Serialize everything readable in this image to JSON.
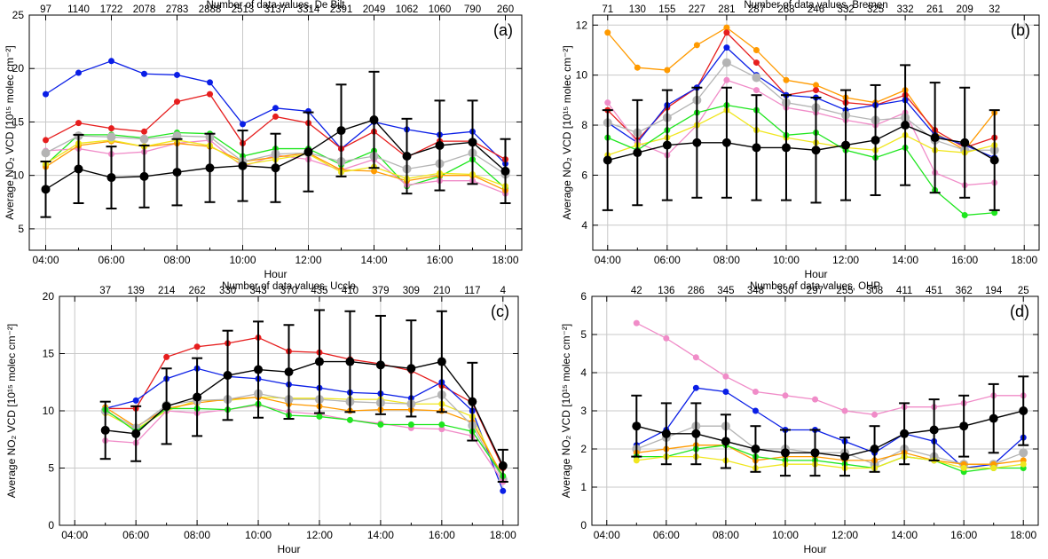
{
  "chart_data": [
    {
      "type": "line",
      "panel_label": "(a)",
      "top_title": "Number of data values, De Bilt",
      "top_counts": [
        "97",
        "1140",
        "1722",
        "2078",
        "2783",
        "2888",
        "2513",
        "3137",
        "3314",
        "2391",
        "2049",
        "1062",
        "1060",
        "790",
        "260"
      ],
      "xlabel": "Hour",
      "ylabel": "Average NO₂ VCD [10¹⁵ molec cm⁻²]",
      "xlim": [
        3.5,
        18.5
      ],
      "ylim": [
        3,
        25
      ],
      "x_ticks": [
        4,
        6,
        8,
        10,
        12,
        14,
        16,
        18
      ],
      "x_tick_labels": [
        "04:00",
        "06:00",
        "08:00",
        "10:00",
        "12:00",
        "14:00",
        "16:00",
        "18:00"
      ],
      "y_ticks": [
        5,
        10,
        15,
        20,
        25
      ],
      "x": [
        4,
        5,
        6,
        7,
        8,
        9,
        10,
        11,
        12,
        13,
        14,
        15,
        16,
        17,
        18
      ],
      "series": [
        {
          "color": "#0a1ee6",
          "values": [
            17.6,
            19.6,
            20.7,
            19.5,
            19.4,
            18.7,
            14.8,
            16.3,
            16.0,
            12.5,
            15.0,
            14.3,
            13.8,
            14.1,
            11.1
          ]
        },
        {
          "color": "#e61e1e",
          "values": [
            13.3,
            14.9,
            14.4,
            14.1,
            16.9,
            17.6,
            13.0,
            15.5,
            14.9,
            12.5,
            14.1,
            11.7,
            13.2,
            13.2,
            11.5
          ]
        },
        {
          "color": "#1ee61e",
          "values": [
            11.0,
            13.8,
            13.8,
            13.5,
            14.0,
            13.9,
            11.8,
            12.5,
            12.5,
            11.0,
            12.3,
            9.0,
            9.9,
            11.5,
            8.8
          ]
        },
        {
          "color": "#f08cc8",
          "values": [
            12.3,
            12.5,
            12.0,
            12.2,
            13.0,
            13.3,
            10.8,
            11.9,
            11.5,
            10.5,
            11.5,
            9.1,
            9.5,
            9.5,
            8.3
          ]
        },
        {
          "color": "#ff9a00",
          "values": [
            10.8,
            12.8,
            13.2,
            12.7,
            13.0,
            12.7,
            11.3,
            11.7,
            12.1,
            10.5,
            10.4,
            9.5,
            10.0,
            10.0,
            8.6
          ]
        },
        {
          "color": "#f0e61e",
          "values": [
            11.1,
            13.0,
            13.3,
            12.7,
            13.3,
            12.8,
            11.0,
            11.5,
            12.0,
            10.3,
            10.8,
            9.7,
            10.2,
            10.1,
            9.0
          ]
        },
        {
          "color": "#b4b4b4",
          "values": [
            12.1,
            13.7,
            13.6,
            13.4,
            13.7,
            13.6,
            11.3,
            12.0,
            12.1,
            11.3,
            11.8,
            10.6,
            11.1,
            12.1,
            10.1
          ]
        },
        {
          "color": "#000000",
          "values": [
            8.7,
            10.6,
            9.8,
            9.9,
            10.3,
            10.7,
            10.9,
            10.7,
            12.2,
            14.2,
            15.2,
            11.8,
            12.8,
            13.1,
            10.4
          ],
          "error": [
            2.6,
            3.2,
            2.9,
            2.9,
            3.1,
            3.2,
            3.3,
            3.2,
            3.7,
            4.3,
            4.5,
            3.5,
            4.2,
            3.9,
            3.0
          ]
        }
      ]
    },
    {
      "type": "line",
      "panel_label": "(b)",
      "top_title": "Number of data values, Bremen",
      "top_counts": [
        "71",
        "130",
        "155",
        "227",
        "281",
        "287",
        "268",
        "246",
        "332",
        "325",
        "332",
        "261",
        "209",
        "32"
      ],
      "xlabel": "Hour",
      "ylabel": "Average NO₂ VCD [10¹⁵ molec cm⁻²]",
      "xlim": [
        3.5,
        18.5
      ],
      "ylim": [
        3,
        12.4
      ],
      "x_ticks": [
        4,
        6,
        8,
        10,
        12,
        14,
        16,
        18
      ],
      "x_tick_labels": [
        "04:00",
        "06:00",
        "08:00",
        "10:00",
        "12:00",
        "14:00",
        "16:00",
        "18:00"
      ],
      "y_ticks": [
        4,
        6,
        8,
        10,
        12
      ],
      "x": [
        4,
        5,
        6,
        7,
        8,
        9,
        10,
        11,
        12,
        13,
        14,
        15,
        16,
        17
      ],
      "series": [
        {
          "color": "#ff9a00",
          "values": [
            11.7,
            10.3,
            10.2,
            11.2,
            11.9,
            11.0,
            9.8,
            9.6,
            9.1,
            8.9,
            9.4,
            7.7,
            7.0,
            8.5
          ]
        },
        {
          "color": "#e61e1e",
          "values": [
            8.6,
            7.4,
            8.7,
            9.5,
            11.7,
            10.5,
            9.2,
            9.4,
            8.9,
            8.8,
            9.2,
            7.8,
            7.1,
            7.5
          ]
        },
        {
          "color": "#0a1ee6",
          "values": [
            8.1,
            7.3,
            8.8,
            9.5,
            11.1,
            10.0,
            9.2,
            9.1,
            8.6,
            8.8,
            9.0,
            7.6,
            7.2,
            6.7
          ]
        },
        {
          "color": "#f08cc8",
          "values": [
            8.9,
            7.3,
            6.8,
            8.0,
            9.8,
            9.4,
            8.7,
            8.5,
            8.2,
            8.0,
            8.5,
            6.1,
            5.6,
            5.7
          ]
        },
        {
          "color": "#b4b4b4",
          "values": [
            8.1,
            7.7,
            8.3,
            9.0,
            10.5,
            9.9,
            8.9,
            8.7,
            8.4,
            8.2,
            8.3,
            7.4,
            7.0,
            7.0
          ]
        },
        {
          "color": "#f0e61e",
          "values": [
            6.8,
            7.2,
            7.5,
            8.0,
            8.6,
            7.8,
            7.5,
            7.3,
            7.1,
            7.0,
            7.6,
            7.0,
            6.9,
            7.2
          ]
        },
        {
          "color": "#1ee61e",
          "values": [
            7.5,
            7.0,
            7.8,
            8.5,
            8.8,
            8.6,
            7.6,
            7.7,
            7.0,
            6.7,
            7.1,
            5.4,
            4.4,
            4.5
          ]
        },
        {
          "color": "#000000",
          "values": [
            6.6,
            6.9,
            7.2,
            7.3,
            7.3,
            7.1,
            7.1,
            7.0,
            7.2,
            7.4,
            8.0,
            7.5,
            7.3,
            6.6
          ],
          "error": [
            2.0,
            2.1,
            2.2,
            2.2,
            2.2,
            2.1,
            2.1,
            2.1,
            2.2,
            2.2,
            2.4,
            2.2,
            2.2,
            2.0
          ]
        }
      ]
    },
    {
      "type": "line",
      "panel_label": "(c)",
      "top_title": "Number of data values, Uccle",
      "top_counts": [
        "37",
        "139",
        "214",
        "262",
        "330",
        "343",
        "370",
        "435",
        "410",
        "379",
        "309",
        "210",
        "117",
        "4"
      ],
      "xlabel": "Hour",
      "ylabel": "Average NO₂ VCD [10¹⁵ molec cm⁻²]",
      "xlim": [
        3.5,
        18.5
      ],
      "ylim": [
        0,
        20
      ],
      "x_ticks": [
        4,
        6,
        8,
        10,
        12,
        14,
        16,
        18
      ],
      "x_tick_labels": [
        "04:00",
        "06:00",
        "08:00",
        "10:00",
        "12:00",
        "14:00",
        "16:00",
        "18:00"
      ],
      "y_ticks": [
        0,
        5,
        10,
        15,
        20
      ],
      "x": [
        5,
        6,
        7,
        8,
        9,
        10,
        11,
        12,
        13,
        14,
        15,
        16,
        17,
        18
      ],
      "series": [
        {
          "color": "#e61e1e",
          "values": [
            10.2,
            10.2,
            14.7,
            15.6,
            15.9,
            16.4,
            15.2,
            15.1,
            14.5,
            14.1,
            13.5,
            12.2,
            10.7,
            5.0
          ]
        },
        {
          "color": "#0a1ee6",
          "values": [
            10.2,
            10.9,
            12.8,
            13.7,
            13.0,
            12.8,
            12.3,
            12.0,
            11.6,
            11.5,
            11.1,
            12.5,
            10.0,
            3.0
          ]
        },
        {
          "color": "#f0e61e",
          "values": [
            9.8,
            8.4,
            10.0,
            10.9,
            10.9,
            11.2,
            11.1,
            11.1,
            11.0,
            11.0,
            10.6,
            10.6,
            9.5,
            4.0
          ]
        },
        {
          "color": "#ff9a00",
          "values": [
            10.3,
            8.6,
            10.2,
            10.7,
            11.0,
            11.2,
            10.6,
            10.4,
            10.0,
            10.1,
            10.1,
            10.0,
            9.0,
            4.3
          ]
        },
        {
          "color": "#b4b4b4",
          "values": [
            10.0,
            8.5,
            10.5,
            10.9,
            11.0,
            11.5,
            11.0,
            11.0,
            10.8,
            10.7,
            10.6,
            11.4,
            8.7,
            4.0
          ]
        },
        {
          "color": "#f08cc8",
          "values": [
            7.4,
            7.2,
            10.0,
            9.8,
            10.1,
            10.5,
            9.9,
            9.7,
            9.2,
            8.9,
            8.5,
            8.4,
            7.8,
            3.8
          ]
        },
        {
          "color": "#1ee61e",
          "values": [
            10.1,
            8.2,
            10.2,
            10.2,
            10.1,
            10.6,
            9.6,
            9.5,
            9.2,
            8.8,
            8.8,
            8.8,
            8.2,
            4.3
          ]
        },
        {
          "color": "#000000",
          "values": [
            8.3,
            8.0,
            10.4,
            11.2,
            13.1,
            13.6,
            13.4,
            14.3,
            14.3,
            14.0,
            13.7,
            14.3,
            10.8,
            5.2
          ],
          "error": [
            2.5,
            2.4,
            3.3,
            3.4,
            3.9,
            4.2,
            4.1,
            4.5,
            4.4,
            4.3,
            4.2,
            4.4,
            3.4,
            1.4
          ]
        }
      ]
    },
    {
      "type": "line",
      "panel_label": "(d)",
      "top_title": "Number of data values, OHP",
      "top_counts": [
        "42",
        "136",
        "286",
        "345",
        "348",
        "330",
        "297",
        "255",
        "308",
        "411",
        "451",
        "362",
        "194",
        "25"
      ],
      "xlabel": "Hour",
      "ylabel": "Average NO₂ VCD [10¹⁵ molec cm⁻²]",
      "xlim": [
        3.5,
        18.5
      ],
      "ylim": [
        0,
        6
      ],
      "x_ticks": [
        4,
        6,
        8,
        10,
        12,
        14,
        16,
        18
      ],
      "x_tick_labels": [
        "04:00",
        "06:00",
        "08:00",
        "10:00",
        "12:00",
        "14:00",
        "16:00",
        "18:00"
      ],
      "y_ticks": [
        0,
        1,
        2,
        3,
        4,
        5,
        6
      ],
      "x": [
        5,
        6,
        7,
        8,
        9,
        10,
        11,
        12,
        13,
        14,
        15,
        16,
        17,
        18
      ],
      "series": [
        {
          "color": "#f08cc8",
          "values": [
            5.3,
            4.9,
            4.4,
            3.9,
            3.5,
            3.4,
            3.3,
            3.0,
            2.9,
            3.1,
            3.1,
            3.2,
            3.4,
            3.4
          ]
        },
        {
          "color": "#0a1ee6",
          "values": [
            2.1,
            2.5,
            3.6,
            3.5,
            3.0,
            2.5,
            2.5,
            2.2,
            1.9,
            2.4,
            2.2,
            1.5,
            1.6,
            2.3
          ]
        },
        {
          "color": "#b4b4b4",
          "values": [
            2.0,
            2.3,
            2.6,
            2.6,
            2.0,
            2.0,
            1.9,
            1.9,
            1.6,
            2.0,
            1.8,
            1.6,
            1.6,
            1.9
          ]
        },
        {
          "color": "#ff9a00",
          "values": [
            1.9,
            2.0,
            2.1,
            2.1,
            1.7,
            1.8,
            1.8,
            1.7,
            1.7,
            1.9,
            1.7,
            1.6,
            1.6,
            1.7
          ]
        },
        {
          "color": "#1ee61e",
          "values": [
            1.8,
            1.8,
            2.0,
            2.1,
            1.8,
            1.7,
            1.7,
            1.6,
            1.5,
            1.8,
            1.7,
            1.4,
            1.5,
            1.5
          ]
        },
        {
          "color": "#f0e61e",
          "values": [
            1.7,
            1.8,
            1.8,
            1.7,
            1.5,
            1.6,
            1.6,
            1.5,
            1.5,
            1.8,
            1.7,
            1.5,
            1.5,
            1.6
          ]
        },
        {
          "color": "#000000",
          "values": [
            2.6,
            2.4,
            2.4,
            2.2,
            2.0,
            1.9,
            1.9,
            1.8,
            2.0,
            2.4,
            2.5,
            2.6,
            2.8,
            3.0
          ],
          "error": [
            0.8,
            0.8,
            0.8,
            0.7,
            0.6,
            0.6,
            0.6,
            0.5,
            0.6,
            0.8,
            0.8,
            0.8,
            0.9,
            0.9
          ]
        }
      ]
    }
  ]
}
